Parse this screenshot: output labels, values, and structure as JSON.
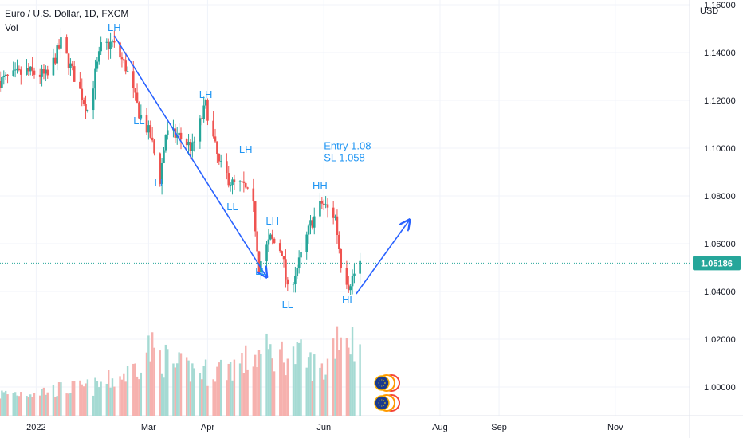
{
  "header": {
    "symbol_title": "Euro / U.S. Dollar, 1D, FXCM",
    "volume_label": "Vol",
    "currency": "USD"
  },
  "colors": {
    "up": "#26a69a",
    "down": "#ef5350",
    "vol_up": "#a5dad3",
    "vol_down": "#f6b1ae",
    "annotation": "#2962ff",
    "label": "#2196f3",
    "grid": "#f0f3fa",
    "price_line": "#26a69a"
  },
  "chart_data": {
    "type": "candlestick",
    "title": "Euro / U.S. Dollar, 1D, FXCM",
    "ylabel": "USD",
    "ylim": [
      0.988,
      1.162
    ],
    "y_ticks": [
      1.0,
      1.02,
      1.04,
      1.06,
      1.08,
      1.1,
      1.12,
      1.14,
      1.16
    ],
    "y_tick_labels": [
      "1.00000",
      "1.02000",
      "1.04000",
      "1.06000",
      "1.08000",
      "1.10000",
      "1.12000",
      "1.14000",
      "1.16000"
    ],
    "x_ticks": [
      "2022-01-01",
      "2022-03-01",
      "2022-04-01",
      "2022-06-01",
      "2022-08-01",
      "2022-09-01",
      "2022-11-01"
    ],
    "x_tick_labels": [
      "2022",
      "Mar",
      "Apr",
      "Jun",
      "Aug",
      "Sep",
      "Nov"
    ],
    "x_range": [
      "2021-12-13",
      "2022-12-10"
    ],
    "last_price": 1.05186,
    "last_price_label": "1.05186",
    "price_path": [
      [
        "2021-12-13",
        1.128
      ],
      [
        "2021-12-27",
        1.132
      ],
      [
        "2022-01-07",
        1.13
      ],
      [
        "2022-01-14",
        1.144
      ],
      [
        "2022-01-20",
        1.132
      ],
      [
        "2022-01-28",
        1.116
      ],
      [
        "2022-02-04",
        1.142
      ],
      [
        "2022-02-10",
        1.144
      ],
      [
        "2022-02-17",
        1.134
      ],
      [
        "2022-02-24",
        1.115
      ],
      [
        "2022-03-02",
        1.105
      ],
      [
        "2022-03-07",
        1.087
      ],
      [
        "2022-03-10",
        1.106
      ],
      [
        "2022-03-17",
        1.105
      ],
      [
        "2022-03-24",
        1.1
      ],
      [
        "2022-03-31",
        1.118
      ],
      [
        "2022-04-07",
        1.093
      ],
      [
        "2022-04-14",
        1.085
      ],
      [
        "2022-04-20",
        1.084
      ],
      [
        "2022-04-25",
        1.075
      ],
      [
        "2022-04-28",
        1.051
      ],
      [
        "2022-05-04",
        1.062
      ],
      [
        "2022-05-10",
        1.057
      ],
      [
        "2022-05-13",
        1.04
      ],
      [
        "2022-05-19",
        1.052
      ],
      [
        "2022-05-25",
        1.068
      ],
      [
        "2022-05-31",
        1.077
      ],
      [
        "2022-06-07",
        1.071
      ],
      [
        "2022-06-10",
        1.052
      ],
      [
        "2022-06-14",
        1.043
      ],
      [
        "2022-06-20",
        1.052
      ]
    ],
    "volume_profile": [
      [
        "2021-12-13",
        0.22
      ],
      [
        "2022-02-01",
        0.3
      ],
      [
        "2022-02-20",
        0.45
      ],
      [
        "2022-03-01",
        0.7
      ],
      [
        "2022-03-15",
        0.5
      ],
      [
        "2022-04-01",
        0.45
      ],
      [
        "2022-04-20",
        0.55
      ],
      [
        "2022-05-01",
        0.65
      ],
      [
        "2022-05-20",
        0.6
      ],
      [
        "2022-06-01",
        0.45
      ],
      [
        "2022-06-09",
        0.9
      ],
      [
        "2022-06-20",
        0.7
      ]
    ],
    "structure_labels": [
      {
        "text": "LH",
        "date": "2022-02-11",
        "price": 1.149
      },
      {
        "text": "LL",
        "date": "2022-02-24",
        "price": 1.11
      },
      {
        "text": "LL",
        "date": "2022-03-07",
        "price": 1.084
      },
      {
        "text": "LH",
        "date": "2022-03-31",
        "price": 1.121
      },
      {
        "text": "LH",
        "date": "2022-04-21",
        "price": 1.098
      },
      {
        "text": "LL",
        "date": "2022-04-14",
        "price": 1.074
      },
      {
        "text": "LH",
        "date": "2022-05-05",
        "price": 1.068
      },
      {
        "text": "LL",
        "date": "2022-04-29",
        "price": 1.047
      },
      {
        "text": "LL",
        "date": "2022-05-13",
        "price": 1.033
      },
      {
        "text": "HH",
        "date": "2022-05-30",
        "price": 1.083
      },
      {
        "text": "HL",
        "date": "2022-06-14",
        "price": 1.035
      }
    ],
    "trade_note": {
      "lines": [
        "Entry 1.08",
        "SL 1.058"
      ],
      "date": "2022-06-01",
      "price": 1.0995
    },
    "arrows": [
      {
        "from": [
          "2022-02-11",
          1.147
        ],
        "to": [
          "2022-05-02",
          1.046
        ]
      },
      {
        "from": [
          "2022-06-18",
          1.039
        ],
        "to": [
          "2022-07-16",
          1.07
        ]
      }
    ],
    "grid": true
  }
}
